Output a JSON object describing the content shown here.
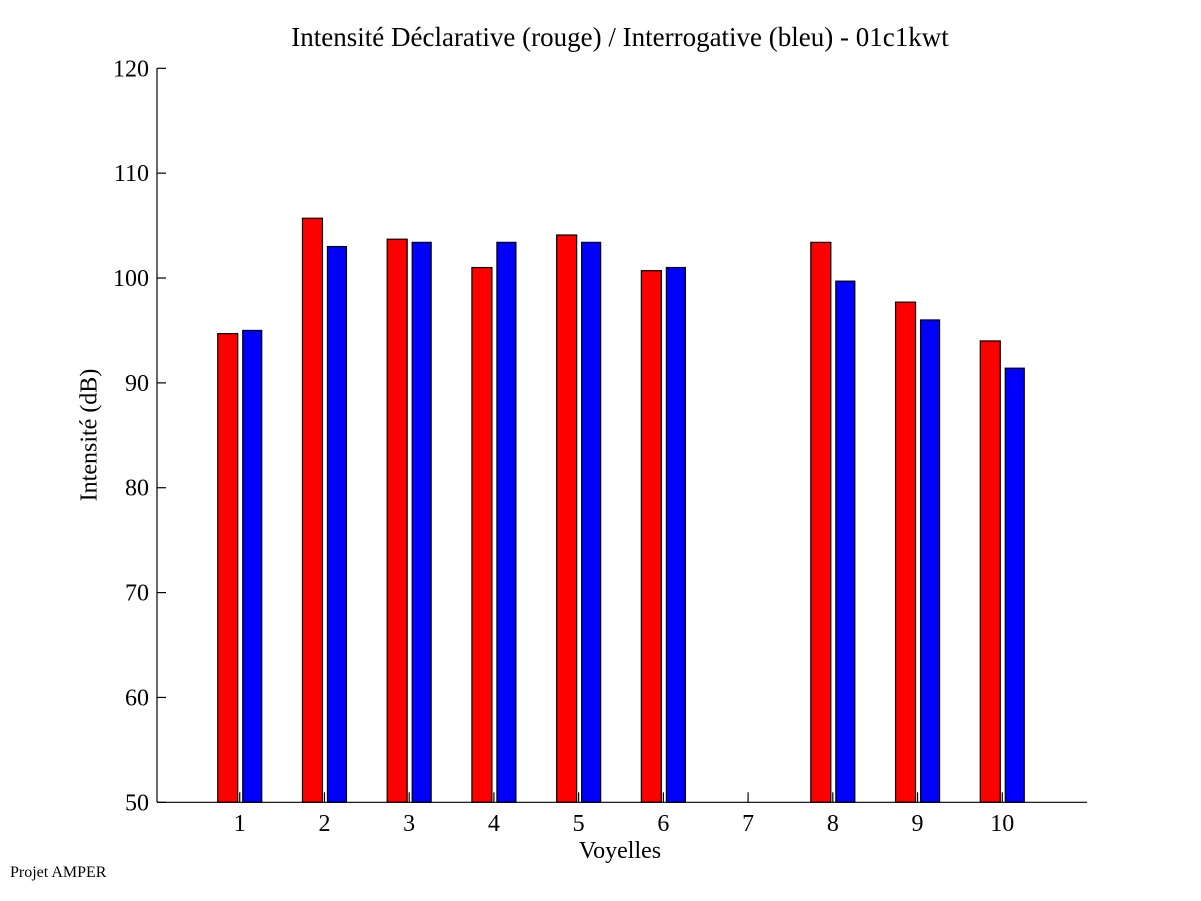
{
  "chart_data": {
    "type": "bar",
    "title": "Intensité Déclarative (rouge) / Interrogative (bleu) - 01c1kwt",
    "xlabel": "Voyelles",
    "ylabel": "Intensité (dB)",
    "categories": [
      "1",
      "2",
      "3",
      "4",
      "5",
      "6",
      "7",
      "8",
      "9",
      "10"
    ],
    "series": [
      {
        "name": "Déclarative (rouge)",
        "color": "#ff0000",
        "values": [
          94.7,
          105.7,
          103.7,
          101.0,
          104.1,
          100.7,
          null,
          103.4,
          97.7,
          94.0
        ]
      },
      {
        "name": "Interrogative (bleu)",
        "color": "#0000ff",
        "values": [
          95.0,
          103.0,
          103.4,
          103.4,
          103.4,
          101.0,
          null,
          99.7,
          96.0,
          91.4
        ]
      }
    ],
    "xlim": [
      0,
      11
    ],
    "ylim": [
      50,
      120
    ],
    "yticks": [
      "50",
      "60",
      "70",
      "80",
      "90",
      "100",
      "110",
      "120"
    ],
    "grid": false,
    "legend": "none"
  },
  "footer": {
    "credit": "Projet AMPER"
  }
}
